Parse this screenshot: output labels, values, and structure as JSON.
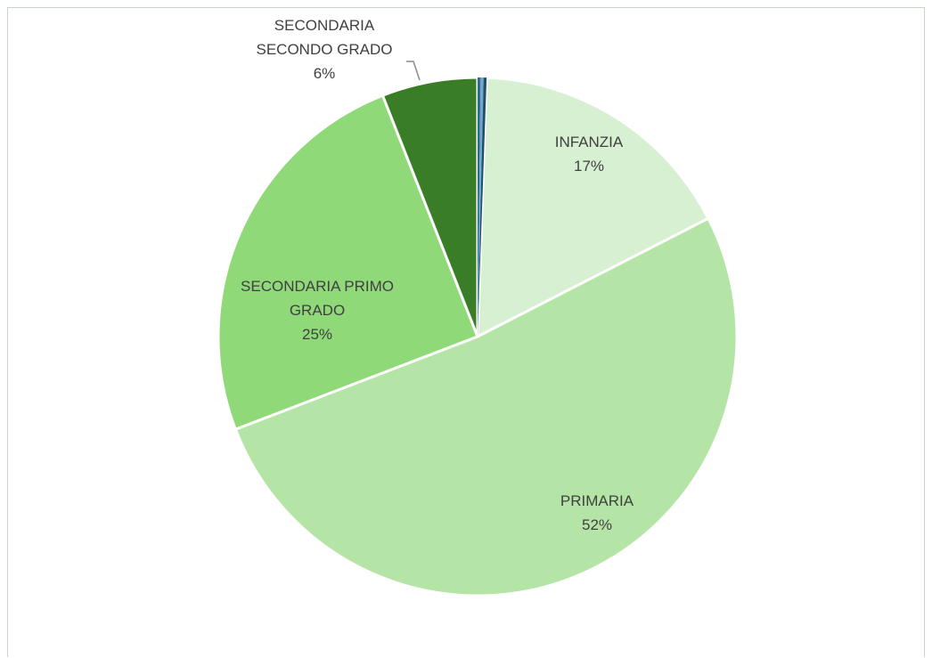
{
  "chart_data": {
    "type": "pie",
    "title": "",
    "slices": [
      {
        "label": "INFANZIA",
        "value": 17,
        "value_label": "17%",
        "color": "#d8f0d2"
      },
      {
        "label": "PRIMARIA",
        "value": 52,
        "value_label": "52%",
        "color": "#b5e5a6"
      },
      {
        "label": "SECONDARIA PRIMO GRADO",
        "value": 25,
        "value_label": "25%",
        "color": "#8fd978"
      },
      {
        "label": "SECONDARIA SECONDO GRADO",
        "value": 6,
        "value_label": "6%",
        "color": "#3a7d27"
      }
    ],
    "legend": "none",
    "border_color": "#c9d6c9"
  }
}
